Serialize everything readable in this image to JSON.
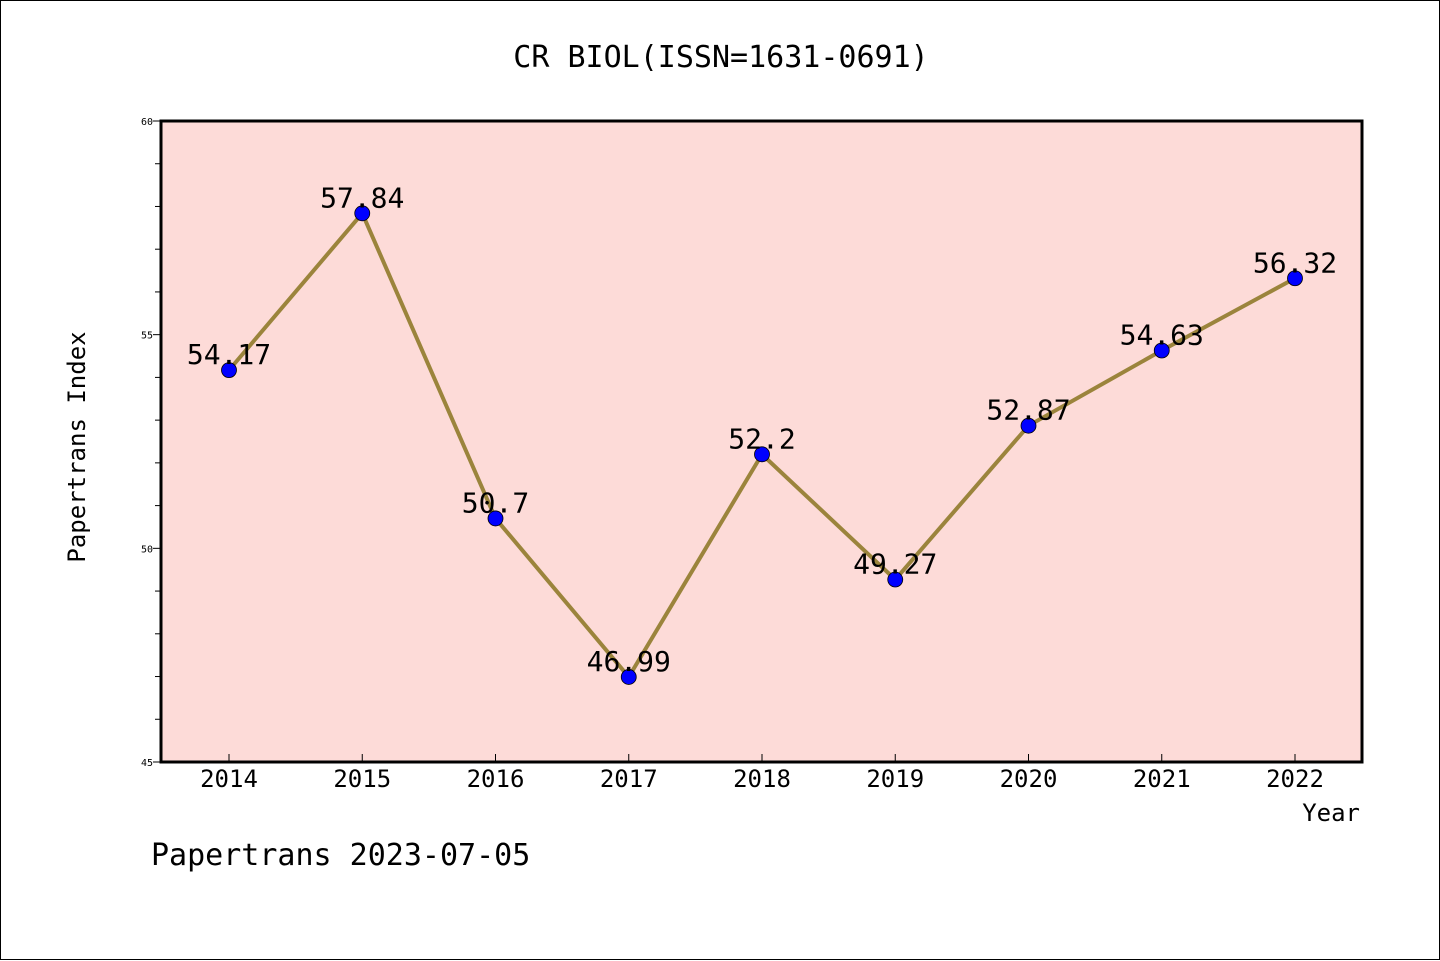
{
  "chart_data": {
    "type": "line",
    "title": "CR BIOL(ISSN=1631-0691)",
    "xlabel": "Year",
    "ylabel": "Papertrans Index",
    "categories": [
      "2014",
      "2015",
      "2016",
      "2017",
      "2018",
      "2019",
      "2020",
      "2021",
      "2022"
    ],
    "series": [
      {
        "values": [
          54.17,
          57.84,
          50.7,
          46.99,
          52.2,
          49.27,
          52.87,
          54.63,
          56.32
        ],
        "labels": [
          "54.17",
          "57.84",
          "50.7",
          "46.99",
          "52.2",
          "49.27",
          "52.87",
          "54.63",
          "56.32"
        ]
      }
    ],
    "ylim": [
      45,
      60
    ],
    "yticks": [
      "45",
      "50",
      "55",
      "60"
    ],
    "grid": false,
    "colors": {
      "plot_background": "#fddbd8",
      "line": "#9b843c",
      "marker": "#0000ff"
    }
  },
  "footer": {
    "text": "Papertrans 2023-07-05"
  }
}
